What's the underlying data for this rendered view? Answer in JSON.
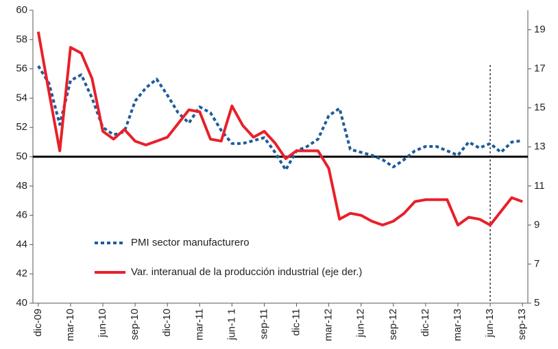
{
  "chart_data": {
    "type": "line",
    "categories": [
      "dic-09",
      null,
      null,
      "mar-10",
      null,
      null,
      "jun-10",
      null,
      null,
      "sep-10",
      null,
      null,
      "dic-10",
      null,
      null,
      "mar-11",
      null,
      null,
      "jun-1 1",
      null,
      null,
      "sep-11",
      null,
      null,
      "dic-11",
      null,
      null,
      "mar-12",
      null,
      null,
      "jun-12",
      null,
      null,
      "sep-12",
      null,
      null,
      "dic-12",
      null,
      null,
      "mar-13",
      null,
      null,
      "jun-13",
      null,
      null,
      "sep-13"
    ],
    "series": [
      {
        "name": "PMI sector manufacturero",
        "color": "#1f5c99",
        "dash": true,
        "values": [
          56.2,
          55,
          52.2,
          55.2,
          55.6,
          54,
          52,
          51.5,
          51.7,
          53.8,
          54.7,
          55.3,
          54.2,
          53,
          52.3,
          53.4,
          53,
          51.8,
          50.9,
          50.9,
          51.1,
          51.3,
          50.3,
          49.1,
          50.4,
          50.7,
          51.2,
          52.8,
          53.3,
          50.5,
          50.3,
          50.1,
          49.8,
          49.3,
          49.8,
          50.4,
          50.7,
          50.7,
          50.4,
          50.1,
          51,
          50.6,
          50.9,
          50.3,
          51,
          51.1
        ]
      },
      {
        "name": "Var. interanual de la producción industrial (eje der.)",
        "color": "#e8202a",
        "axis": "y2",
        "values": [
          18.9,
          15.8,
          12.8,
          18.1,
          17.8,
          16.5,
          13.8,
          13.4,
          13.9,
          13.3,
          13.1,
          13.3,
          13.5,
          14.2,
          14.9,
          14.8,
          13.4,
          13.3,
          15.1,
          14.1,
          13.5,
          13.8,
          13.2,
          12.4,
          12.8,
          12.8,
          12.8,
          11.9,
          9.3,
          9.6,
          9.5,
          9.2,
          9.0,
          9.2,
          9.6,
          10.2,
          10.3,
          10.3,
          10.3,
          9.0,
          9.4,
          9.3,
          9.0,
          9.7,
          10.4,
          10.2
        ]
      }
    ],
    "ylim": [
      40,
      60
    ],
    "yticks": [
      40,
      42,
      44,
      46,
      48,
      50,
      52,
      54,
      56,
      58,
      60
    ],
    "y2lim": [
      5,
      20
    ],
    "y2ticks": [
      5,
      7,
      9,
      11,
      13,
      15,
      17,
      19
    ],
    "hline": 50,
    "vline": "jun-13"
  }
}
